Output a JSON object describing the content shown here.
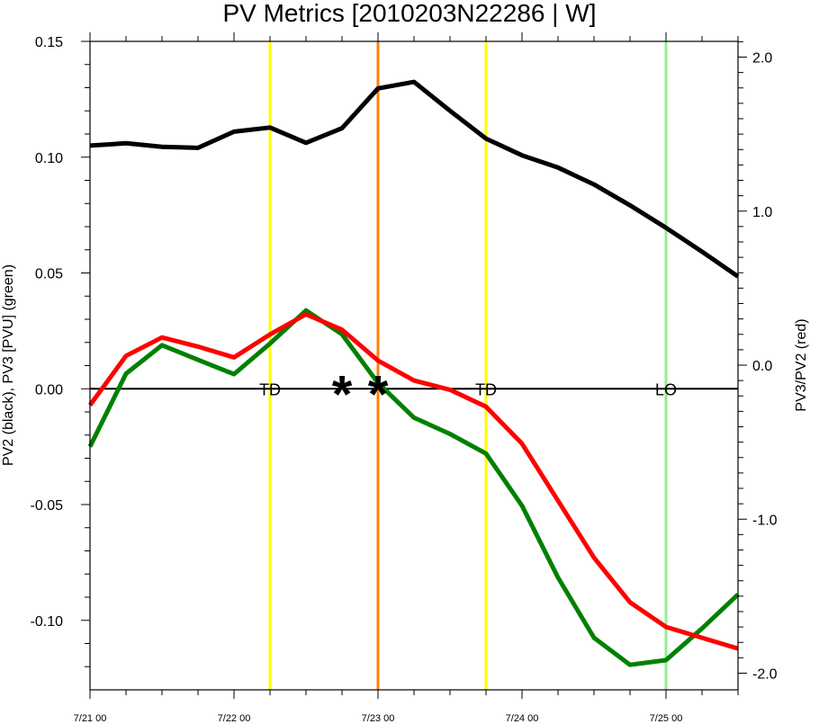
{
  "chart_data": {
    "type": "line",
    "title": "PV Metrics [2010203N22286 | W]",
    "ylabel_left": "PV2 (black), PV3 [PVU] (green)",
    "ylabel_right": "PV3/PV2 (red)",
    "x_tick_labels": [
      "7/21 00",
      "7/22 00",
      "7/23 00",
      "7/24 00",
      "7/25 00"
    ],
    "x_ticks_days": [
      0,
      1,
      2,
      3,
      4
    ],
    "xlim_days": [
      0,
      4.5
    ],
    "ylim_left": [
      -0.13,
      0.15
    ],
    "yticks_left": [
      0.15,
      0.1,
      0.05,
      0.0,
      -0.05,
      -0.1
    ],
    "ytick_labels_left": [
      "0.15",
      "0.10",
      "0.05",
      "0.00",
      "-0.05",
      "-0.10"
    ],
    "ylim_right": [
      -2.0,
      2.0
    ],
    "yticks_right": [
      2.0,
      1.0,
      0.0,
      -1.0,
      -2.0
    ],
    "ytick_labels_right": [
      "2.0",
      "1.0",
      "0.0",
      "-1.0",
      "-2.0"
    ],
    "series": [
      {
        "color": "#000000",
        "axis": "left",
        "x": [
          0,
          0.25,
          0.5,
          0.75,
          1.0,
          1.25,
          1.5,
          1.75,
          2.0,
          2.25,
          2.5,
          2.75,
          3.0,
          3.25,
          3.5,
          3.75,
          4.0,
          4.25,
          4.5
        ],
        "values": [
          0.105,
          0.106,
          0.1045,
          0.104,
          0.111,
          0.1128,
          0.1062,
          0.1125,
          0.1297,
          0.1325,
          0.12,
          0.108,
          0.1008,
          0.0955,
          0.0882,
          0.0792,
          0.0695,
          0.0592,
          0.0485
        ]
      },
      {
        "color": "#008000",
        "axis": "left",
        "x": [
          0,
          0.25,
          0.5,
          0.75,
          1.0,
          1.25,
          1.5,
          1.75,
          2.0,
          2.25,
          2.5,
          2.75,
          3.0,
          3.25,
          3.5,
          3.75,
          4.0,
          4.25,
          4.5
        ],
        "values": [
          -0.025,
          0.0065,
          0.0188,
          0.0125,
          0.0063,
          0.0195,
          0.0338,
          0.0235,
          0.0025,
          -0.0125,
          -0.0195,
          -0.028,
          -0.0505,
          -0.0815,
          -0.1075,
          -0.1192,
          -0.1172,
          -0.1035,
          -0.0888
        ]
      },
      {
        "color": "#ff0000",
        "axis": "right",
        "x": [
          0,
          0.25,
          0.5,
          0.75,
          1.0,
          1.25,
          1.5,
          1.75,
          2.0,
          2.25,
          2.5,
          2.75,
          3.0,
          3.25,
          3.5,
          3.75,
          4.0,
          4.25,
          4.5
        ],
        "values": [
          -0.26,
          0.06,
          0.18,
          0.12,
          0.05,
          0.2,
          0.33,
          0.23,
          0.03,
          -0.1,
          -0.16,
          -0.27,
          -0.51,
          -0.88,
          -1.25,
          -1.54,
          -1.7,
          -1.77,
          -1.84
        ]
      }
    ],
    "vertical_lines": [
      {
        "x": 1.25,
        "color": "#ffff00",
        "label": "TD"
      },
      {
        "x": 2.0,
        "color": "#ff8000",
        "label": ""
      },
      {
        "x": 2.75,
        "color": "#ffff00",
        "label": "TD"
      },
      {
        "x": 4.0,
        "color": "#90ee90",
        "label": "LO"
      }
    ],
    "markers": [
      {
        "x": 1.75,
        "y": 0.0,
        "symbol": "*"
      },
      {
        "x": 2.0,
        "y": 0.0,
        "symbol": "*"
      }
    ],
    "zero_line": true,
    "grid": false,
    "legend": "none"
  }
}
